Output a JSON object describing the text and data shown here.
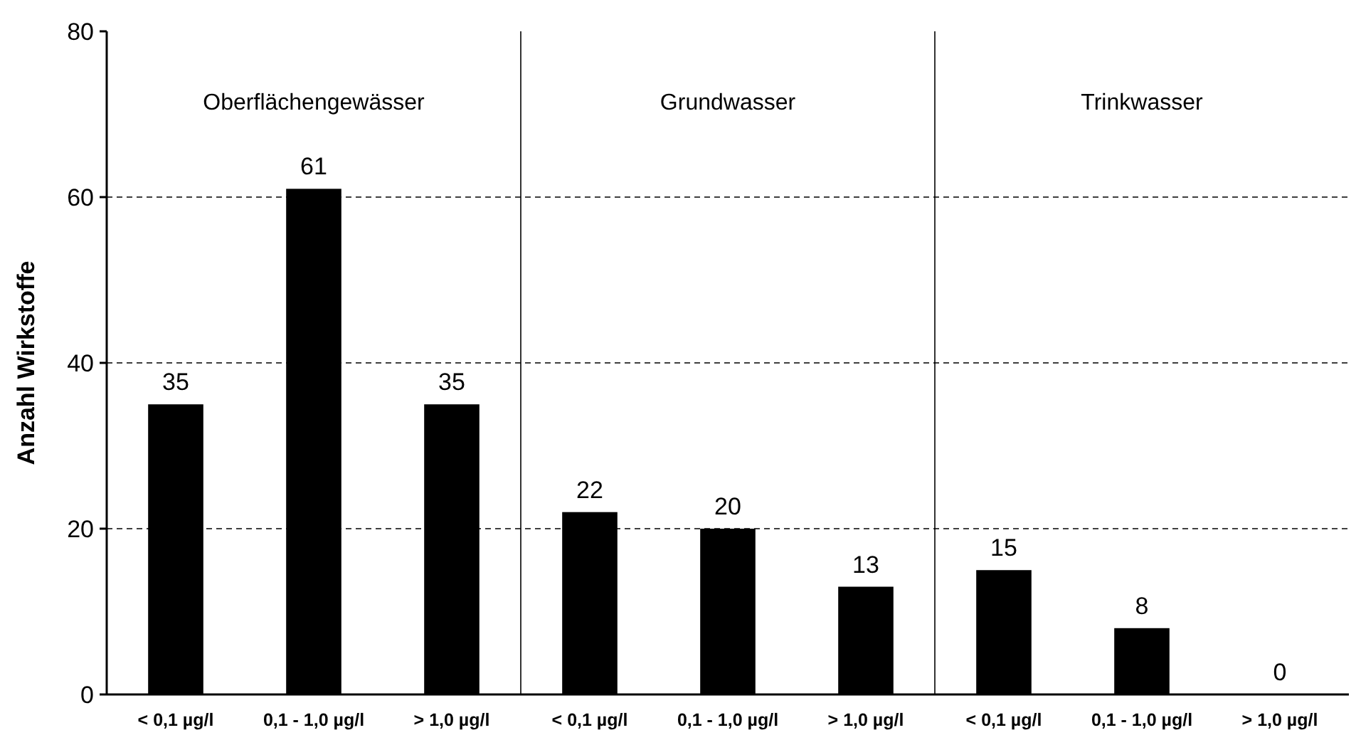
{
  "chart_data": {
    "type": "bar",
    "ylabel": "Anzahl Wirkstoffe",
    "categories": [
      "< 0,1 µg/l",
      "0,1 - 1,0 µg/l",
      "> 1,0 µg/l",
      "< 0,1 µg/l",
      "0,1 - 1,0 µg/l",
      "> 1,0 µg/l",
      "< 0,1 µg/l",
      "0,1 - 1,0 µg/l",
      "> 1,0 µg/l"
    ],
    "values": [
      35,
      61,
      35,
      22,
      20,
      13,
      15,
      8,
      0
    ],
    "color": "#000000",
    "ylim": [
      0,
      80
    ],
    "yticks": [
      0,
      20,
      40,
      60,
      80
    ],
    "grid": "y",
    "data_labels": true,
    "annotations": [
      "Oberflächengewässer",
      "Grundwasser",
      "Trinkwasser"
    ]
  }
}
